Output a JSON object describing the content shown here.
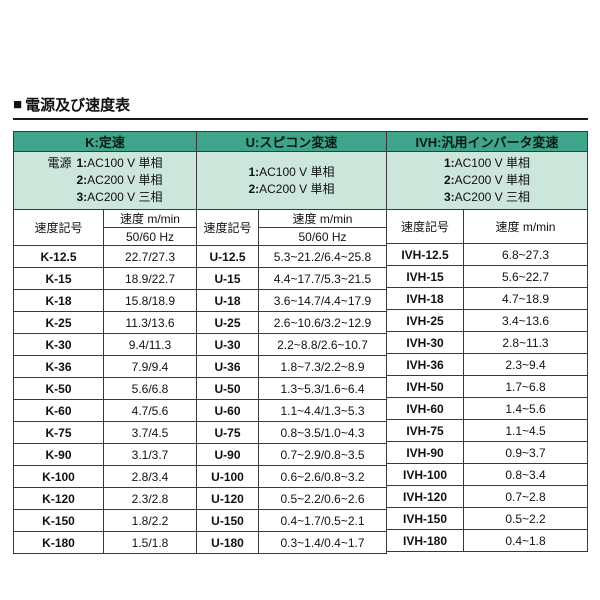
{
  "title": {
    "marker": "■",
    "text": "電源及び速度表"
  },
  "colors": {
    "header_bg": "#3fa58a",
    "power_bg": "#cce6dc",
    "border": "#3a3a3a"
  },
  "table": {
    "sections": [
      {
        "id": "K",
        "header": "K:定速",
        "power_label": "電源",
        "power_lines": [
          {
            "num": "1:",
            "text": "AC100 V 単相"
          },
          {
            "num": "2:",
            "text": "AC200 V 単相"
          },
          {
            "num": "3:",
            "text": "AC200 V 三相"
          }
        ],
        "col_code": "速度記号",
        "col_speed": "速度 m/min",
        "col_speed_sub": "50/60 Hz",
        "rows": [
          [
            "K-12.5",
            "22.7/27.3"
          ],
          [
            "K-15",
            "18.9/22.7"
          ],
          [
            "K-18",
            "15.8/18.9"
          ],
          [
            "K-25",
            "11.3/13.6"
          ],
          [
            "K-30",
            "9.4/11.3"
          ],
          [
            "K-36",
            "7.9/9.4"
          ],
          [
            "K-50",
            "5.6/6.8"
          ],
          [
            "K-60",
            "4.7/5.6"
          ],
          [
            "K-75",
            "3.7/4.5"
          ],
          [
            "K-90",
            "3.1/3.7"
          ],
          [
            "K-100",
            "2.8/3.4"
          ],
          [
            "K-120",
            "2.3/2.8"
          ],
          [
            "K-150",
            "1.8/2.2"
          ],
          [
            "K-180",
            "1.5/1.8"
          ]
        ]
      },
      {
        "id": "U",
        "header": "U:スピコン変速",
        "power_lines": [
          {
            "num": "1:",
            "text": "AC100 V 単相"
          },
          {
            "num": "2:",
            "text": "AC200 V 単相"
          }
        ],
        "col_code": "速度記号",
        "col_speed": "速度 m/min",
        "col_speed_sub": "50/60 Hz",
        "rows": [
          [
            "U-12.5",
            "5.3~21.2/6.4~25.8"
          ],
          [
            "U-15",
            "4.4~17.7/5.3~21.5"
          ],
          [
            "U-18",
            "3.6~14.7/4.4~17.9"
          ],
          [
            "U-25",
            "2.6~10.6/3.2~12.9"
          ],
          [
            "U-30",
            "2.2~8.8/2.6~10.7"
          ],
          [
            "U-36",
            "1.8~7.3/2.2~8.9"
          ],
          [
            "U-50",
            "1.3~5.3/1.6~6.4"
          ],
          [
            "U-60",
            "1.1~4.4/1.3~5.3"
          ],
          [
            "U-75",
            "0.8~3.5/1.0~4.3"
          ],
          [
            "U-90",
            "0.7~2.9/0.8~3.5"
          ],
          [
            "U-100",
            "0.6~2.6/0.8~3.2"
          ],
          [
            "U-120",
            "0.5~2.2/0.6~2.6"
          ],
          [
            "U-150",
            "0.4~1.7/0.5~2.1"
          ],
          [
            "U-180",
            "0.3~1.4/0.4~1.7"
          ]
        ]
      },
      {
        "id": "IVH",
        "header": "IVH:汎用インバータ変速",
        "power_lines": [
          {
            "num": "1:",
            "text": "AC100 V 単相"
          },
          {
            "num": "2:",
            "text": "AC200 V 単相"
          },
          {
            "num": "3:",
            "text": "AC200 V 三相"
          }
        ],
        "col_code": "速度記号",
        "col_speed": "速度 m/min",
        "rows": [
          [
            "IVH-12.5",
            "6.8~27.3"
          ],
          [
            "IVH-15",
            "5.6~22.7"
          ],
          [
            "IVH-18",
            "4.7~18.9"
          ],
          [
            "IVH-25",
            "3.4~13.6"
          ],
          [
            "IVH-30",
            "2.8~11.3"
          ],
          [
            "IVH-36",
            "2.3~9.4"
          ],
          [
            "IVH-50",
            "1.7~6.8"
          ],
          [
            "IVH-60",
            "1.4~5.6"
          ],
          [
            "IVH-75",
            "1.1~4.5"
          ],
          [
            "IVH-90",
            "0.9~3.7"
          ],
          [
            "IVH-100",
            "0.8~3.4"
          ],
          [
            "IVH-120",
            "0.7~2.8"
          ],
          [
            "IVH-150",
            "0.5~2.2"
          ],
          [
            "IVH-180",
            "0.4~1.8"
          ]
        ]
      }
    ]
  }
}
